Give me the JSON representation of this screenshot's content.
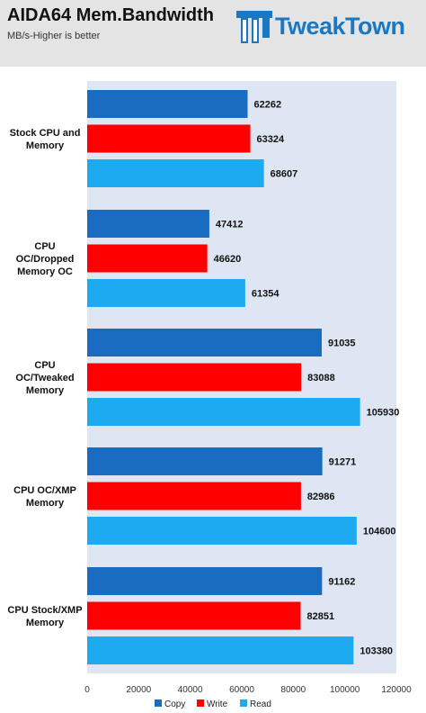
{
  "header": {
    "title": "AIDA64 Mem.Bandwidth",
    "subtitle": "MB/s-Higher is better",
    "logo_text": "TweakTown"
  },
  "colors": {
    "copy": "#1a6cc0",
    "write": "#ff0000",
    "read": "#1eaaee",
    "plot_bg": "#dde6f2"
  },
  "chart_data": {
    "type": "bar",
    "orientation": "horizontal",
    "categories": [
      [
        "Stock CPU and",
        "Memory"
      ],
      [
        "CPU",
        "OC/Dropped",
        "Memory OC"
      ],
      [
        "CPU",
        "OC/Tweaked",
        "Memory"
      ],
      [
        "CPU OC/XMP",
        "Memory"
      ],
      [
        "CPU Stock/XMP",
        "Memory"
      ]
    ],
    "series": [
      {
        "name": "Copy",
        "values": [
          62262,
          47412,
          91035,
          91271,
          91162
        ]
      },
      {
        "name": "Write",
        "values": [
          63324,
          46620,
          83088,
          82986,
          82851
        ]
      },
      {
        "name": "Read",
        "values": [
          68607,
          61354,
          105930,
          104600,
          103380
        ]
      }
    ],
    "xlim": [
      0,
      120000
    ],
    "xticks": [
      "0",
      "20000",
      "40000",
      "60000",
      "80000",
      "100000",
      "120000"
    ],
    "legend_position": "bottom",
    "grid": false
  }
}
